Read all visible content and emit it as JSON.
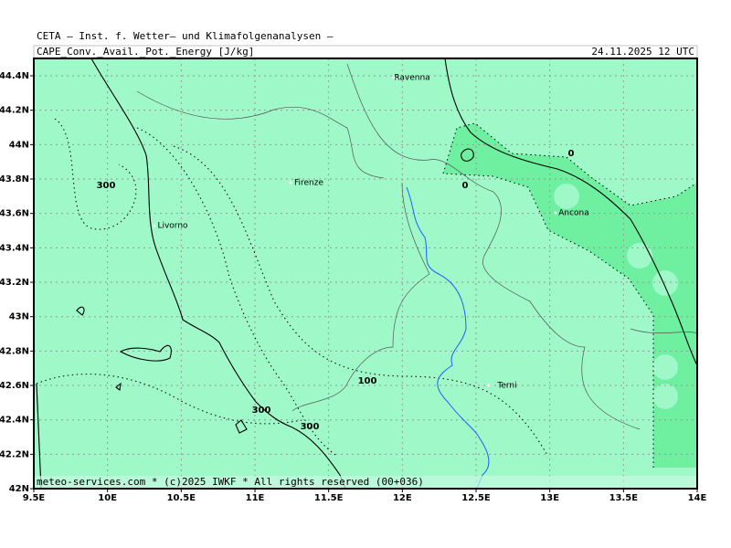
{
  "header": {
    "institute": "CETA — Inst. f. Wetter— und Klimafolgenanalysen —",
    "field": "CAPE_Conv._Avail._Pot._Energy [J/kg]",
    "valid_time": "24.11.2025 12 UTC"
  },
  "map": {
    "lat_labels": [
      "44.4N",
      "44.2N",
      "44N",
      "43.8N",
      "43.6N",
      "43.4N",
      "43.2N",
      "43N",
      "42.8N",
      "42.6N",
      "42.4N",
      "42.2N",
      "42N"
    ],
    "lon_labels": [
      "9.5E",
      "10E",
      "10.5E",
      "11E",
      "11.5E",
      "12E",
      "12.5E",
      "13E",
      "13.5E",
      "14E"
    ],
    "places": [
      "Ravenna",
      "Firenze",
      "Livorno",
      "Ancona",
      "Terni"
    ],
    "contour_labels": [
      "300",
      "0",
      "0",
      "100",
      "300",
      "300"
    ],
    "footer": "meteo-services.com * (c)2025 IWKF * All rights reserved (00+036)"
  }
}
